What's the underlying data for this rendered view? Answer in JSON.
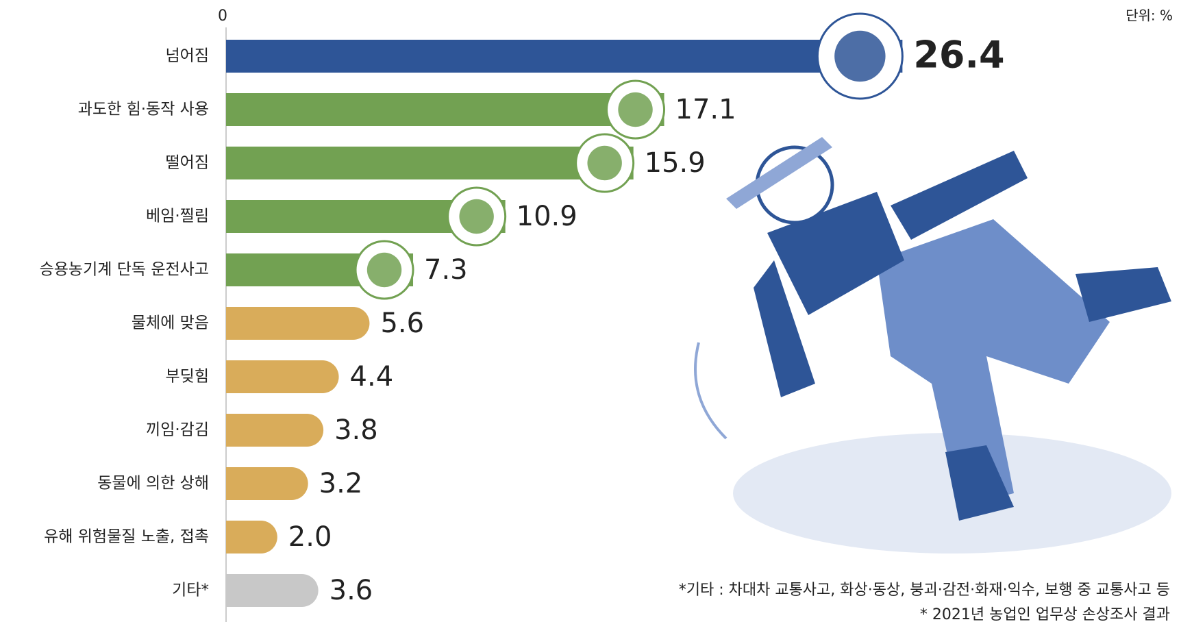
{
  "chart_data": {
    "type": "bar",
    "orientation": "horizontal",
    "unit_note": "단위: %",
    "categories": [
      "넘어짐",
      "과도한 힘·동작 사용",
      "떨어짐",
      "베임·찔림",
      "승용농기계 단독 운전사고",
      "물체에 맞음",
      "부딪힘",
      "끼임·감김",
      "동물에 의한 상해",
      "유해 위험물질 노출, 접촉",
      "기타*"
    ],
    "values": [
      26.4,
      17.1,
      15.9,
      10.9,
      7.3,
      5.6,
      4.4,
      3.8,
      3.2,
      2.0,
      3.6
    ],
    "value_labels": [
      "26.4",
      "17.1",
      "15.9",
      "10.9",
      "7.3",
      "5.6",
      "4.4",
      "3.8",
      "3.2",
      "2.0",
      "3.6"
    ],
    "colors": [
      "#2e5597",
      "#72a152",
      "#72a152",
      "#72a152",
      "#72a152",
      "#d9ac5a",
      "#d9ac5a",
      "#d9ac5a",
      "#d9ac5a",
      "#d9ac5a",
      "#c8c8c8"
    ],
    "xlim": [
      0,
      30
    ],
    "xticks": [
      0
    ],
    "footnotes": [
      "*기타 : 차대차 교통사고, 화상·동상, 붕괴·감전·화재·익수, 보행 중 교통사고 등",
      "* 2021년 농업인 업무상 손상조사 결과"
    ]
  }
}
